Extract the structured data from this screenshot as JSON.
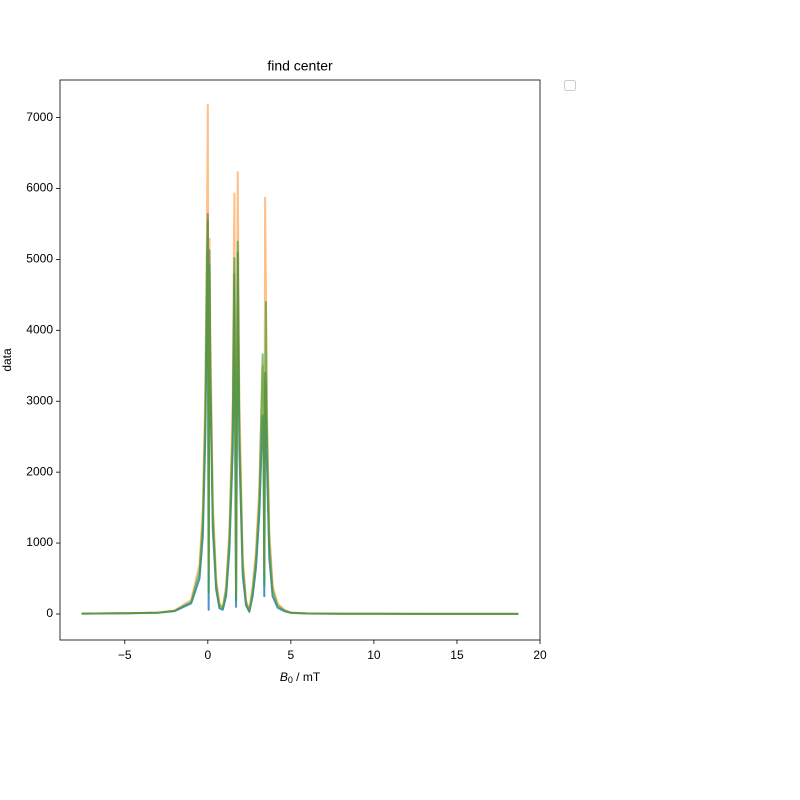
{
  "chart_data": {
    "type": "line",
    "title": "find center",
    "ylabel": "data",
    "xlabel_parts": [
      "B",
      "0",
      " / mT"
    ],
    "x": [
      -7.6,
      -5,
      -3,
      -2,
      -1,
      -0.5,
      -0.3,
      -0.15,
      -0.05,
      0,
      0.05,
      0.1,
      0.15,
      0.3,
      0.5,
      0.7,
      0.9,
      1.1,
      1.3,
      1.5,
      1.6,
      1.7,
      1.75,
      1.8,
      1.85,
      1.9,
      2.1,
      2.3,
      2.5,
      2.7,
      2.9,
      3.1,
      3.3,
      3.35,
      3.4,
      3.45,
      3.5,
      3.55,
      3.7,
      3.9,
      4.2,
      4.6,
      5,
      6,
      8,
      12,
      18.7
    ],
    "series": [
      {
        "color": "#1f77b4",
        "alpha": 0.8,
        "values": [
          5,
          10,
          18,
          40,
          150,
          500,
          1100,
          2500,
          4500,
          5640,
          60,
          5130,
          3300,
          1200,
          350,
          80,
          60,
          250,
          900,
          2300,
          4800,
          100,
          2600,
          5100,
          3600,
          2300,
          550,
          120,
          30,
          250,
          650,
          1400,
          2800,
          2600,
          250,
          3400,
          3200,
          2200,
          800,
          250,
          90,
          40,
          15,
          6,
          4,
          2,
          1
        ]
      },
      {
        "color": "#ff7f0e",
        "alpha": 0.5,
        "values": [
          5,
          10,
          20,
          50,
          200,
          700,
          1500,
          3200,
          5500,
          7180,
          600,
          5290,
          4000,
          1600,
          500,
          150,
          100,
          400,
          1200,
          3000,
          5930,
          300,
          3000,
          6230,
          4500,
          3000,
          800,
          200,
          50,
          400,
          900,
          1800,
          3500,
          3300,
          600,
          5870,
          4500,
          3000,
          1200,
          400,
          150,
          60,
          20,
          8,
          5,
          3,
          2
        ]
      },
      {
        "color": "#2ca02c",
        "alpha": 0.6,
        "values": [
          5,
          10,
          18,
          45,
          170,
          600,
          1300,
          2800,
          5000,
          5540,
          300,
          4920,
          3500,
          1400,
          420,
          120,
          80,
          330,
          1050,
          2600,
          5020,
          200,
          2800,
          5250,
          3900,
          2600,
          680,
          160,
          40,
          330,
          780,
          1600,
          3660,
          3000,
          400,
          2900,
          4400,
          2700,
          1000,
          330,
          120,
          50,
          18,
          7,
          4,
          2,
          1
        ]
      }
    ],
    "xlim": [
      -8.9,
      20
    ],
    "ylim": [
      -367,
      7530
    ],
    "xticks": [
      {
        "value": -5,
        "label": "−5"
      },
      0,
      5,
      10,
      15,
      20
    ],
    "yticks": [
      0,
      1000,
      2000,
      3000,
      4000,
      5000,
      6000,
      7000
    ]
  }
}
